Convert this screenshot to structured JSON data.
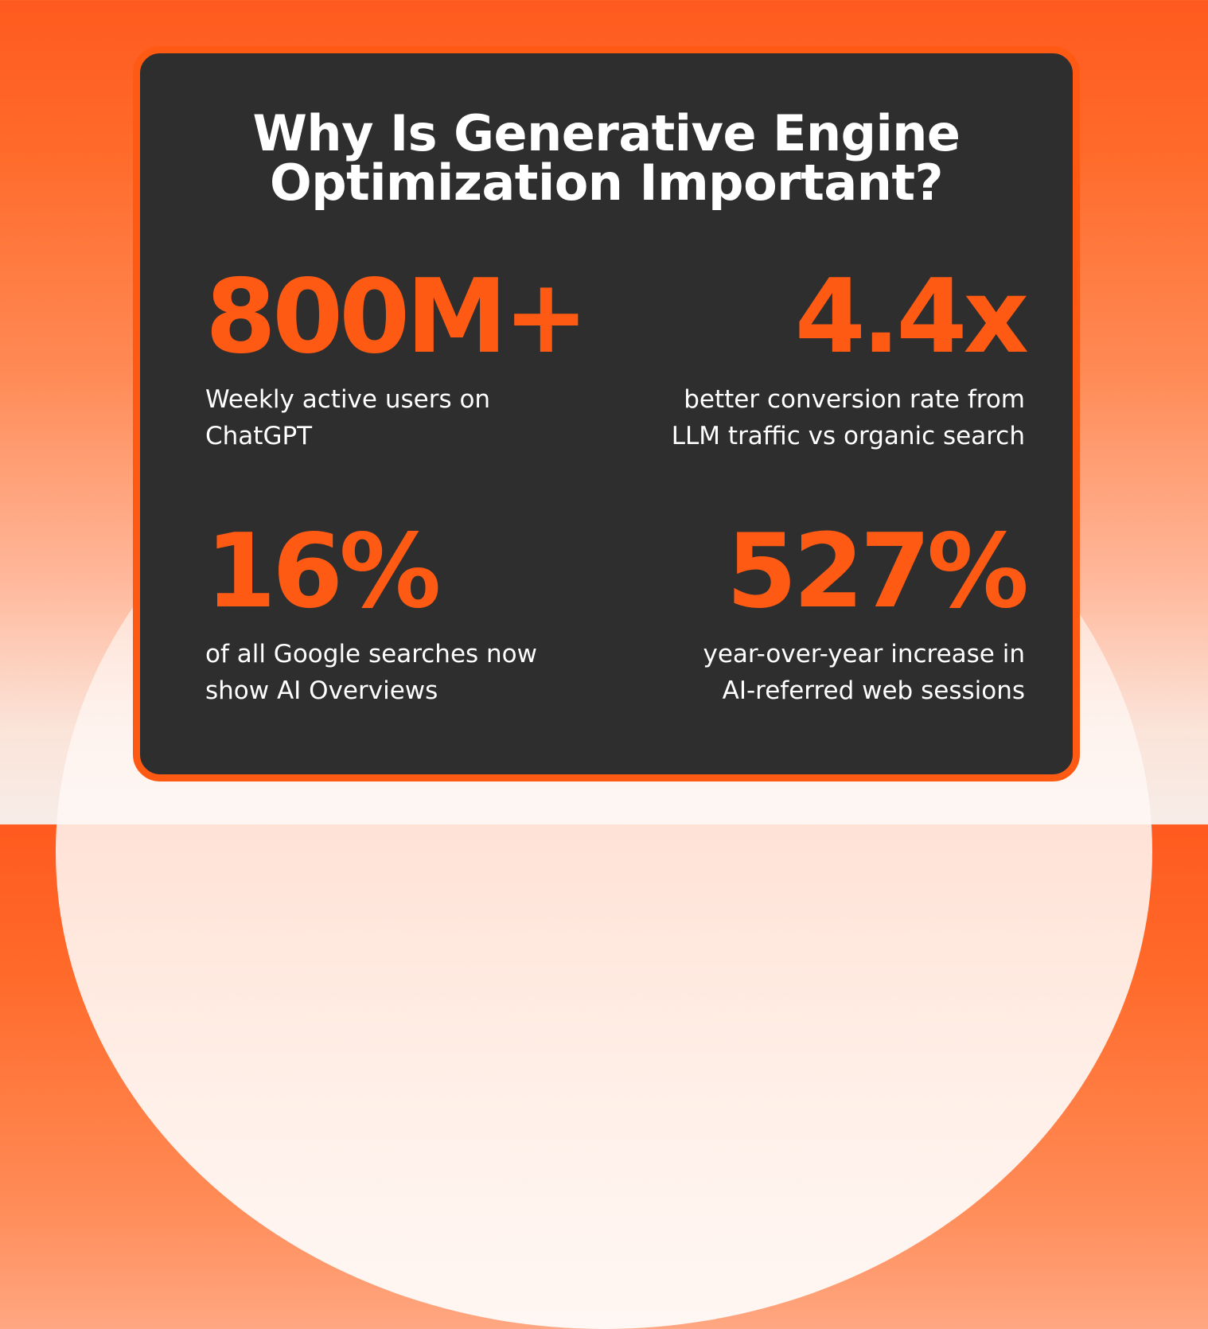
{
  "title": {
    "line1": "Why Is Generative Engine",
    "line2": "Optimization Important?"
  },
  "stats": [
    {
      "value": "800M+",
      "desc_line1": "Weekly active users on",
      "desc_line2": "ChatGPT"
    },
    {
      "value": "4.4x",
      "desc_line1": "better conversion rate from",
      "desc_line2": "LLM traffic vs organic search"
    },
    {
      "value": "16%",
      "desc_line1": "of all Google searches now",
      "desc_line2": "show AI Overviews"
    },
    {
      "value": "527%",
      "desc_line1": "year-over-year increase in",
      "desc_line2": "AI-referred web sessions"
    }
  ],
  "colors": {
    "accent": "#ff5a14",
    "card_background": "#2e2e2e",
    "text": "#ffffff"
  }
}
